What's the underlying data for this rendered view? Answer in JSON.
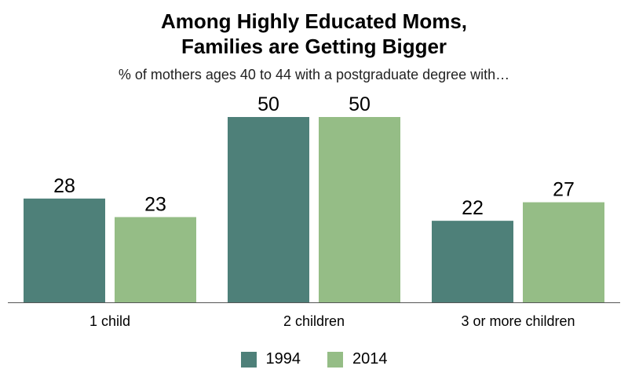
{
  "chart_data": {
    "type": "bar",
    "title_lines": [
      "Among Highly Educated Moms,",
      "Families are Getting Bigger"
    ],
    "subtitle": "% of mothers ages 40 to 44 with a postgraduate degree with…",
    "categories": [
      "1 child",
      "2 children",
      "3 or more children"
    ],
    "series": [
      {
        "name": "1994",
        "values": [
          28,
          50,
          22
        ],
        "color": "#4e8079"
      },
      {
        "name": "2014",
        "values": [
          23,
          50,
          27
        ],
        "color": "#95bd86"
      }
    ],
    "ylim": [
      0,
      50
    ],
    "grid": false,
    "legend_position": "bottom"
  }
}
